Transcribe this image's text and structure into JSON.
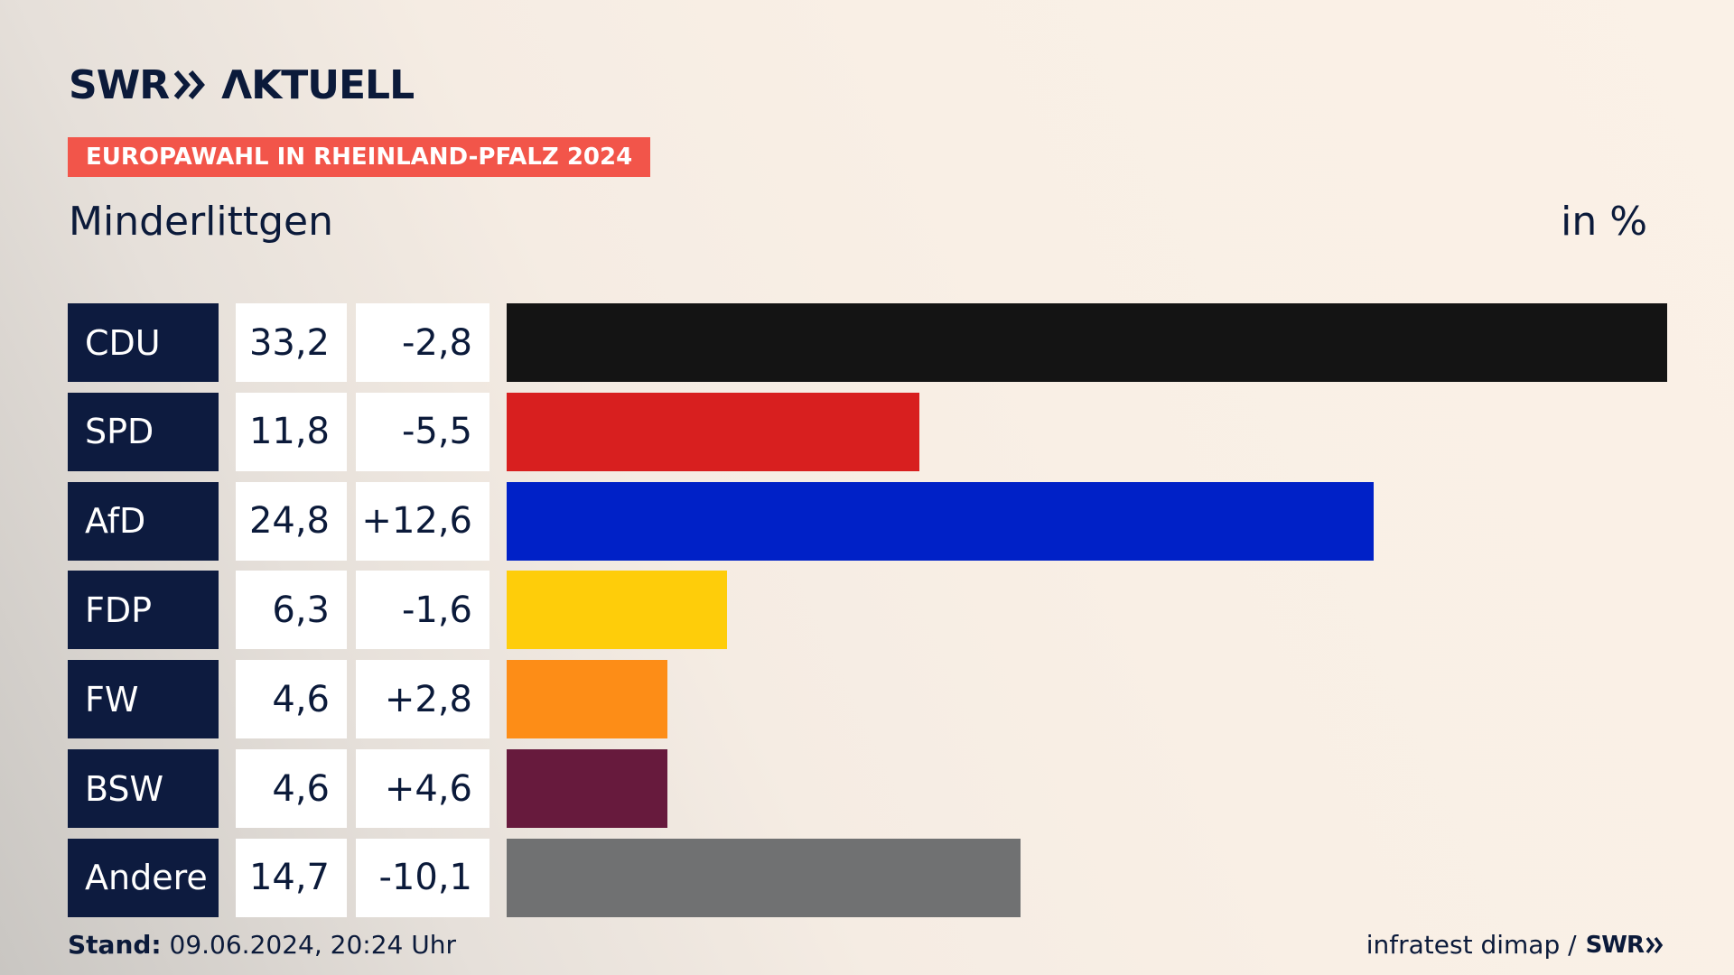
{
  "brand": {
    "swr": "SWR",
    "aktuell": "ΛKTUELL"
  },
  "tag": "EUROPAWAHL IN RHEINLAND-PFALZ 2024",
  "region": "Minderlittgen",
  "unit": "in %",
  "footer": {
    "stand_label": "Stand:",
    "stand_value": " 09.06.2024, 20:24 Uhr",
    "source": "infratest dimap /",
    "source_logo": "SWR"
  },
  "chart_data": {
    "type": "bar",
    "orientation": "horizontal",
    "categories": [
      "CDU",
      "SPD",
      "AfD",
      "FDP",
      "FW",
      "BSW",
      "Andere"
    ],
    "values": [
      33.2,
      11.8,
      24.8,
      6.3,
      4.6,
      4.6,
      14.7
    ],
    "value_labels": [
      "33,2",
      "11,8",
      "24,8",
      "6,3",
      "4,6",
      "4,6",
      "14,7"
    ],
    "changes": [
      -2.8,
      -5.5,
      12.6,
      -1.6,
      2.8,
      4.6,
      -10.1
    ],
    "change_labels": [
      "-2,8",
      "-5,5",
      "+12,6",
      "-1,6",
      "+2,8",
      "+4,6",
      "-10,1"
    ],
    "colors": [
      "#141414",
      "#d81f1f",
      "#0021c7",
      "#fecd0a",
      "#fd8d17",
      "#671a3d",
      "#707172"
    ],
    "title": "Minderlittgen",
    "unit": "in %",
    "xlim": [
      0,
      33.2
    ]
  }
}
